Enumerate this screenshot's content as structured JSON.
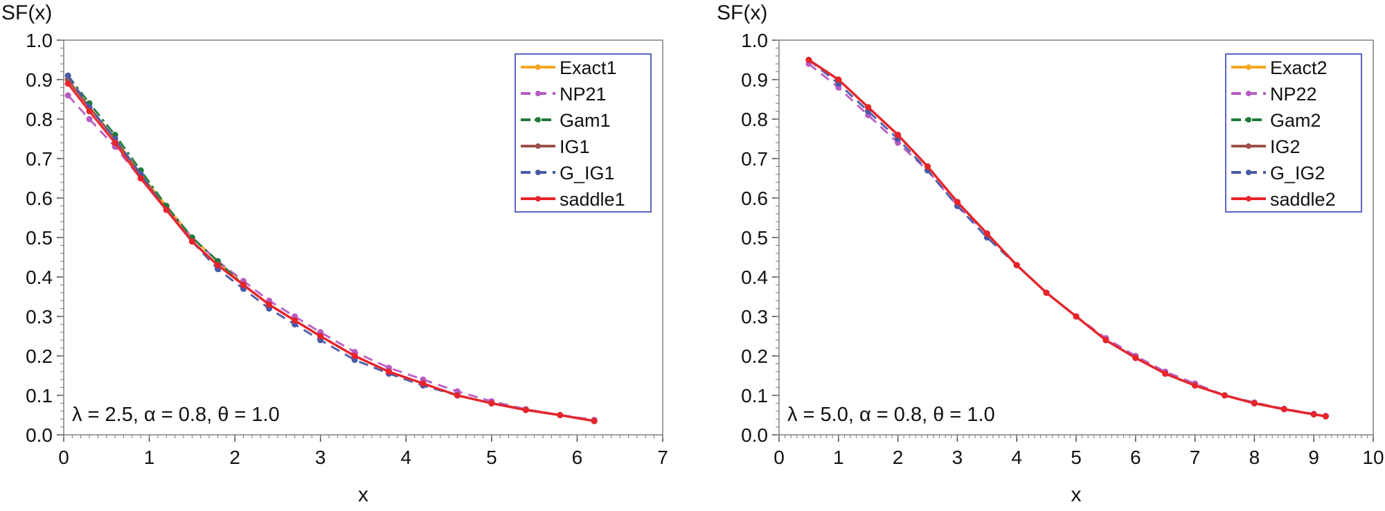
{
  "chart_data": [
    {
      "type": "line",
      "ylabel": "SF(x)",
      "xlabel": "x",
      "xlim": [
        0,
        7
      ],
      "ylim": [
        0.0,
        1.0
      ],
      "xticks": [
        "0",
        "1",
        "2",
        "3",
        "4",
        "5",
        "6",
        "7"
      ],
      "yticks": [
        "0.0",
        "0.1",
        "0.2",
        "0.3",
        "0.4",
        "0.5",
        "0.6",
        "0.7",
        "0.8",
        "0.9",
        "1.0"
      ],
      "annotation": "λ = 2.5, α = 0.8, θ = 1.0",
      "legend_position": "top-right",
      "grid": false,
      "series": [
        {
          "name": "Exact1",
          "color": "#f5a623",
          "dash": "solid",
          "x": [
            0.05,
            0.3,
            0.6,
            0.9,
            1.2,
            1.5,
            1.8,
            2.1,
            2.4,
            2.7,
            3.0,
            3.4,
            3.8,
            4.2,
            4.6,
            5.0,
            5.4,
            5.8,
            6.2
          ],
          "y": [
            0.9,
            0.83,
            0.75,
            0.66,
            0.58,
            0.5,
            0.44,
            0.38,
            0.33,
            0.29,
            0.25,
            0.2,
            0.16,
            0.13,
            0.1,
            0.08,
            0.065,
            0.05,
            0.035
          ]
        },
        {
          "name": "NP21",
          "color": "#b85cc4",
          "dash": "dashed",
          "x": [
            0.05,
            0.3,
            0.6,
            0.9,
            1.2,
            1.5,
            1.8,
            2.1,
            2.4,
            2.7,
            3.0,
            3.4,
            3.8,
            4.2,
            4.6,
            5.0,
            5.4,
            5.8,
            6.2
          ],
          "y": [
            0.86,
            0.8,
            0.73,
            0.65,
            0.57,
            0.5,
            0.44,
            0.39,
            0.34,
            0.3,
            0.26,
            0.21,
            0.17,
            0.14,
            0.11,
            0.085,
            0.065,
            0.05,
            0.038
          ]
        },
        {
          "name": "Gam1",
          "color": "#1e7b3a",
          "dash": "dashdot",
          "x": [
            0.05,
            0.3,
            0.6,
            0.9,
            1.2,
            1.5,
            1.8,
            2.1,
            2.4,
            2.7,
            3.0,
            3.4,
            3.8,
            4.2,
            4.6,
            5.0,
            5.4,
            5.8,
            6.2
          ],
          "y": [
            0.91,
            0.84,
            0.76,
            0.67,
            0.58,
            0.5,
            0.44,
            0.38,
            0.33,
            0.29,
            0.25,
            0.2,
            0.16,
            0.13,
            0.1,
            0.08,
            0.063,
            0.05,
            0.035
          ]
        },
        {
          "name": "IG1",
          "color": "#a0504a",
          "dash": "solid",
          "x": [
            0.05,
            0.3,
            0.6,
            0.9,
            1.2,
            1.5,
            1.8,
            2.1,
            2.4,
            2.7,
            3.0,
            3.4,
            3.8,
            4.2,
            4.6,
            5.0,
            5.4,
            5.8,
            6.2
          ],
          "y": [
            0.9,
            0.83,
            0.75,
            0.66,
            0.57,
            0.49,
            0.43,
            0.38,
            0.33,
            0.29,
            0.25,
            0.2,
            0.16,
            0.13,
            0.1,
            0.08,
            0.063,
            0.05,
            0.035
          ]
        },
        {
          "name": "G_IG1",
          "color": "#4a5aa8",
          "dash": "dashed",
          "x": [
            0.05,
            0.3,
            0.6,
            0.9,
            1.2,
            1.5,
            1.8,
            2.1,
            2.4,
            2.7,
            3.0,
            3.4,
            3.8,
            4.2,
            4.6,
            5.0,
            5.4,
            5.8,
            6.2
          ],
          "y": [
            0.91,
            0.83,
            0.75,
            0.66,
            0.57,
            0.49,
            0.42,
            0.37,
            0.32,
            0.28,
            0.24,
            0.19,
            0.155,
            0.125,
            0.1,
            0.08,
            0.063,
            0.05,
            0.035
          ]
        },
        {
          "name": "saddle1",
          "color": "#e8242a",
          "dash": "solid",
          "x": [
            0.05,
            0.3,
            0.6,
            0.9,
            1.2,
            1.5,
            1.8,
            2.1,
            2.4,
            2.7,
            3.0,
            3.4,
            3.8,
            4.2,
            4.6,
            5.0,
            5.4,
            5.8,
            6.2
          ],
          "y": [
            0.89,
            0.82,
            0.74,
            0.65,
            0.57,
            0.49,
            0.43,
            0.38,
            0.33,
            0.29,
            0.25,
            0.2,
            0.16,
            0.13,
            0.1,
            0.08,
            0.063,
            0.05,
            0.035
          ]
        }
      ]
    },
    {
      "type": "line",
      "ylabel": "SF(x)",
      "xlabel": "x",
      "xlim": [
        0,
        10
      ],
      "ylim": [
        0.0,
        1.0
      ],
      "xticks": [
        "0",
        "1",
        "2",
        "3",
        "4",
        "5",
        "6",
        "7",
        "8",
        "9",
        "10"
      ],
      "yticks": [
        "0.0",
        "0.1",
        "0.2",
        "0.3",
        "0.4",
        "0.5",
        "0.6",
        "0.7",
        "0.8",
        "0.9",
        "1.0"
      ],
      "annotation": "λ = 5.0, α = 0.8, θ = 1.0",
      "legend_position": "top-right",
      "grid": false,
      "series": [
        {
          "name": "Exact2",
          "color": "#f5a623",
          "dash": "solid",
          "x": [
            0.5,
            1.0,
            1.5,
            2.0,
            2.5,
            3.0,
            3.5,
            4.0,
            4.5,
            5.0,
            5.5,
            6.0,
            6.5,
            7.0,
            7.5,
            8.0,
            8.5,
            9.0,
            9.2
          ],
          "y": [
            0.95,
            0.9,
            0.83,
            0.76,
            0.68,
            0.59,
            0.51,
            0.43,
            0.36,
            0.3,
            0.24,
            0.195,
            0.155,
            0.125,
            0.1,
            0.08,
            0.065,
            0.052,
            0.047
          ]
        },
        {
          "name": "NP22",
          "color": "#b85cc4",
          "dash": "dashed",
          "x": [
            0.5,
            1.0,
            1.5,
            2.0,
            2.5,
            3.0,
            3.5,
            4.0,
            4.5,
            5.0,
            5.5,
            6.0,
            6.5,
            7.0,
            7.5,
            8.0,
            8.5,
            9.0,
            9.2
          ],
          "y": [
            0.94,
            0.88,
            0.81,
            0.74,
            0.67,
            0.58,
            0.51,
            0.43,
            0.36,
            0.3,
            0.245,
            0.2,
            0.16,
            0.13,
            0.1,
            0.082,
            0.066,
            0.053,
            0.048
          ]
        },
        {
          "name": "Gam2",
          "color": "#1e7b3a",
          "dash": "dashdot",
          "x": [
            0.5,
            1.0,
            1.5,
            2.0,
            2.5,
            3.0,
            3.5,
            4.0,
            4.5,
            5.0,
            5.5,
            6.0,
            6.5,
            7.0,
            7.5,
            8.0,
            8.5,
            9.0,
            9.2
          ],
          "y": [
            0.95,
            0.9,
            0.83,
            0.76,
            0.68,
            0.59,
            0.51,
            0.43,
            0.36,
            0.3,
            0.24,
            0.195,
            0.155,
            0.125,
            0.1,
            0.08,
            0.065,
            0.052,
            0.047
          ]
        },
        {
          "name": "IG2",
          "color": "#a0504a",
          "dash": "solid",
          "x": [
            0.5,
            1.0,
            1.5,
            2.0,
            2.5,
            3.0,
            3.5,
            4.0,
            4.5,
            5.0,
            5.5,
            6.0,
            6.5,
            7.0,
            7.5,
            8.0,
            8.5,
            9.0,
            9.2
          ],
          "y": [
            0.95,
            0.9,
            0.83,
            0.76,
            0.68,
            0.59,
            0.51,
            0.43,
            0.36,
            0.3,
            0.24,
            0.195,
            0.155,
            0.125,
            0.1,
            0.08,
            0.065,
            0.052,
            0.047
          ]
        },
        {
          "name": "G_IG2",
          "color": "#4a5aa8",
          "dash": "dashed",
          "x": [
            0.5,
            1.0,
            1.5,
            2.0,
            2.5,
            3.0,
            3.5,
            4.0,
            4.5,
            5.0,
            5.5,
            6.0,
            6.5,
            7.0,
            7.5,
            8.0,
            8.5,
            9.0,
            9.2
          ],
          "y": [
            0.95,
            0.89,
            0.82,
            0.75,
            0.67,
            0.58,
            0.5,
            0.43,
            0.36,
            0.3,
            0.24,
            0.195,
            0.155,
            0.125,
            0.1,
            0.08,
            0.065,
            0.052,
            0.047
          ]
        },
        {
          "name": "saddle2",
          "color": "#e8242a",
          "dash": "solid",
          "x": [
            0.5,
            1.0,
            1.5,
            2.0,
            2.5,
            3.0,
            3.5,
            4.0,
            4.5,
            5.0,
            5.5,
            6.0,
            6.5,
            7.0,
            7.5,
            8.0,
            8.5,
            9.0,
            9.2
          ],
          "y": [
            0.95,
            0.9,
            0.83,
            0.76,
            0.68,
            0.59,
            0.51,
            0.43,
            0.36,
            0.3,
            0.24,
            0.195,
            0.155,
            0.125,
            0.1,
            0.08,
            0.065,
            0.052,
            0.047
          ]
        }
      ]
    }
  ]
}
